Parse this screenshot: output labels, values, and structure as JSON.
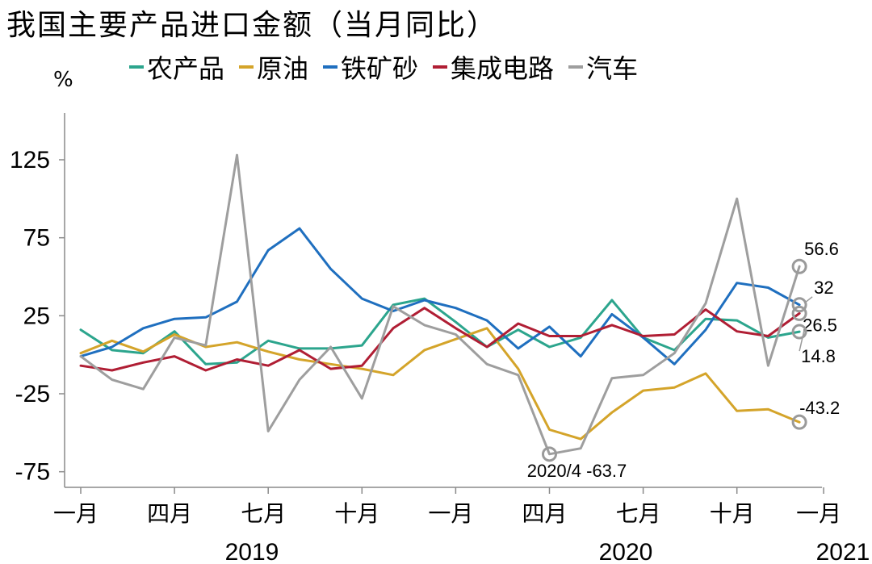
{
  "chart_data": {
    "type": "line",
    "title": "我国主要产品进口金额（当月同比）",
    "ylabel": "%",
    "ylim": [
      -85,
      155
    ],
    "yticks": [
      "125",
      "75",
      "25",
      "-25",
      "-75"
    ],
    "x_tick_labels": [
      "一月",
      "四月",
      "七月",
      "十月",
      "一月",
      "四月",
      "七月",
      "十月",
      "一月"
    ],
    "year_labels": [
      "2019",
      "2020",
      "2021"
    ],
    "x_start": "2019-01",
    "series": [
      {
        "name": "农产品",
        "color": "#2CA58D",
        "values": [
          16,
          3,
          1,
          15,
          -6,
          -5,
          9,
          4,
          4,
          6,
          32,
          36,
          21,
          5,
          16,
          5,
          11,
          35,
          11,
          3,
          23,
          22,
          11,
          14.8
        ]
      },
      {
        "name": "原油",
        "color": "#D4A42A",
        "values": [
          1,
          9,
          2,
          13,
          5,
          8,
          2,
          -3,
          -6,
          -9,
          -13,
          3,
          10,
          17,
          -9,
          -48,
          -54,
          -37,
          -23,
          -21,
          -12,
          -36,
          -35,
          -43.2
        ]
      },
      {
        "name": "铁矿砂",
        "color": "#1F6FBF",
        "values": [
          -1,
          5,
          17,
          23,
          24,
          34,
          67,
          81,
          55,
          36,
          28,
          35,
          30,
          22,
          4,
          18,
          -1,
          26,
          11,
          -6,
          16,
          46,
          43,
          32
        ]
      },
      {
        "name": "集成电路",
        "color": "#B01E34",
        "values": [
          -7,
          -10,
          -5,
          -1,
          -10,
          -3,
          -7,
          3,
          -9,
          -7,
          17,
          30,
          17,
          5,
          20,
          12,
          12,
          19,
          12,
          13,
          29,
          15,
          12,
          26.5
        ]
      },
      {
        "name": "汽车",
        "color": "#9E9E9E",
        "values": [
          -1,
          -16,
          -22,
          11,
          6,
          128,
          -49,
          -16,
          5,
          -28,
          31,
          19,
          13,
          -6,
          -13,
          -63.7,
          -60,
          -15,
          -13,
          1,
          33,
          100,
          -7,
          56.6
        ]
      }
    ],
    "annotations": [
      {
        "series": "汽车",
        "index": 23,
        "label": "56.6"
      },
      {
        "series": "铁矿砂",
        "index": 23,
        "label": "32"
      },
      {
        "series": "集成电路",
        "index": 23,
        "label": "26.5"
      },
      {
        "series": "农产品",
        "index": 23,
        "label": "14.8"
      },
      {
        "series": "原油",
        "index": 23,
        "label": "-43.2"
      },
      {
        "series": "汽车",
        "index": 15,
        "label": "2020/4 -63.7"
      }
    ]
  }
}
